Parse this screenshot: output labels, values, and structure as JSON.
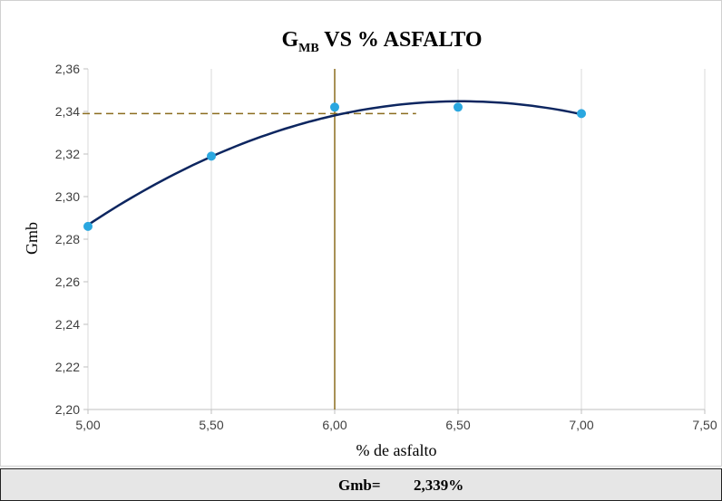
{
  "chart_data": {
    "type": "scatter",
    "title_main": "G",
    "title_sub": "MB",
    "title_rest": " VS % ASFALTO",
    "xlabel": "% de asfalto",
    "ylabel": "Gmb",
    "xlim": [
      5.0,
      7.5
    ],
    "ylim": [
      2.2,
      2.36
    ],
    "x_ticks": [
      5.0,
      5.5,
      6.0,
      6.5,
      7.0,
      7.5
    ],
    "x_tick_labels": [
      "5,00",
      "5,50",
      "6,00",
      "6,50",
      "7,00",
      "7,50"
    ],
    "y_ticks": [
      2.2,
      2.22,
      2.24,
      2.26,
      2.28,
      2.3,
      2.32,
      2.34,
      2.36
    ],
    "y_tick_labels": [
      "2,20",
      "2,22",
      "2,24",
      "2,26",
      "2,28",
      "2,30",
      "2,32",
      "2,34",
      "2,36"
    ],
    "grid": "vertical",
    "series": [
      {
        "points": [
          {
            "x": 5.0,
            "y": 2.286
          },
          {
            "x": 5.5,
            "y": 2.319
          },
          {
            "x": 6.0,
            "y": 2.342
          },
          {
            "x": 6.5,
            "y": 2.342
          },
          {
            "x": 7.0,
            "y": 2.339
          }
        ],
        "color": "#2aa7e0"
      }
    ],
    "trendline": {
      "type": "polynomial-2",
      "x_range": [
        5.0,
        7.0
      ],
      "samples": [
        {
          "x": 5.0,
          "y": 2.287
        },
        {
          "x": 5.5,
          "y": 2.318
        },
        {
          "x": 6.0,
          "y": 2.3385
        },
        {
          "x": 6.5,
          "y": 2.345
        },
        {
          "x": 7.0,
          "y": 2.3385
        }
      ],
      "color": "#0d2660"
    },
    "reference_lines": {
      "vertical_x": 6.0,
      "horizontal_y": 2.339,
      "horizontal_x_range": [
        5.0,
        6.33
      ],
      "color": "#8b6d1f"
    }
  },
  "result": {
    "label": "Gmb=",
    "value": "2,339%"
  }
}
